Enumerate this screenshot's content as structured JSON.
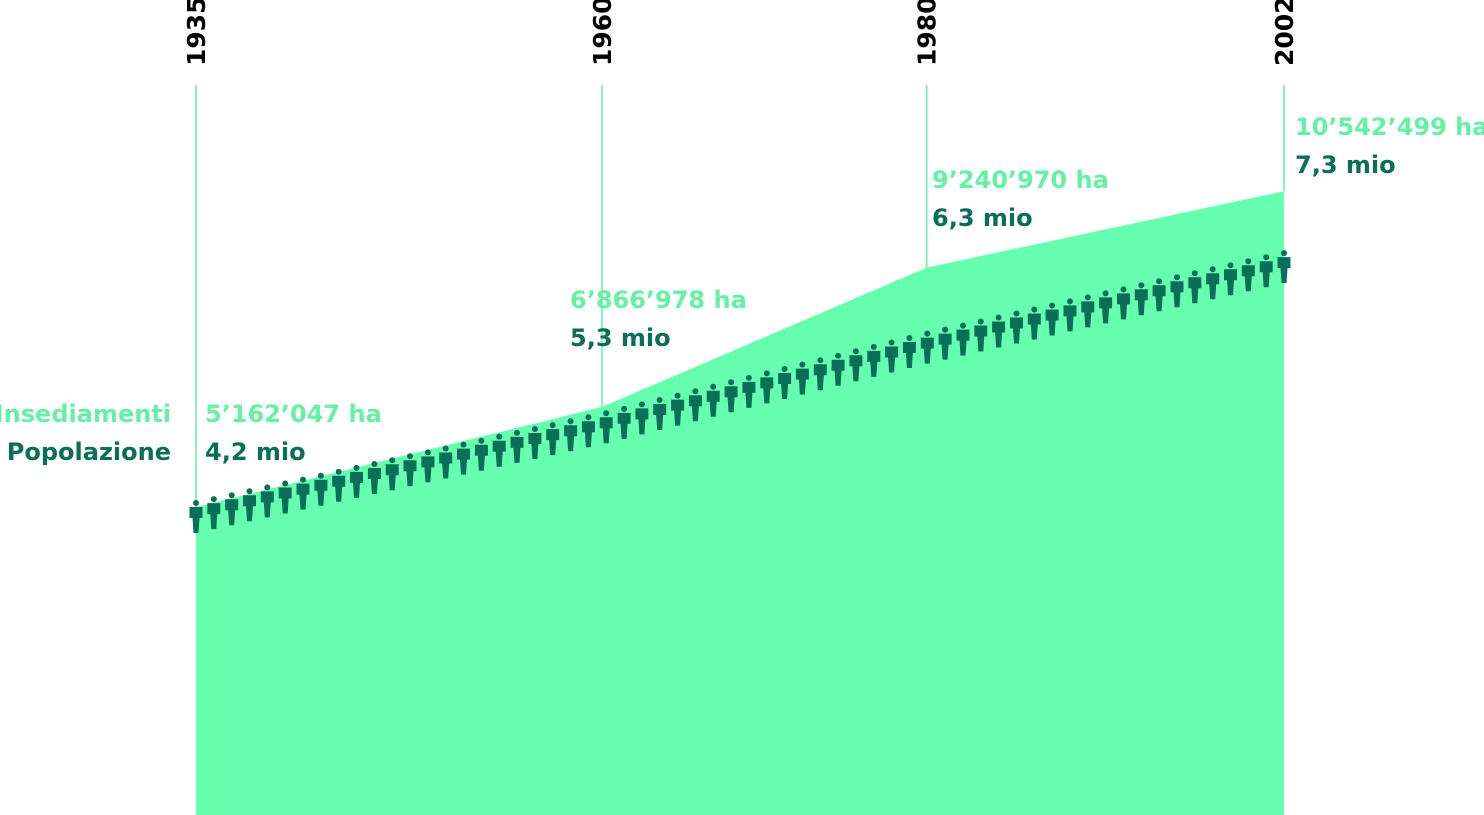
{
  "chart_data": {
    "type": "area",
    "title": "",
    "xlabel": "",
    "ylabel": "",
    "x": [
      1935,
      1960,
      1980,
      2002
    ],
    "x_labels": [
      "1935",
      "1960",
      "1980",
      "2002"
    ],
    "legend_position": "left",
    "grid": false,
    "series": [
      {
        "name": "Insediamenti",
        "values": [
          5162047,
          6866978,
          9240970,
          10542499
        ],
        "labels": [
          "5’162’047 ha",
          "6’866’978 ha",
          "9’240’970 ha",
          "10’542’499 ha"
        ]
      },
      {
        "name": "Popolazione",
        "values": [
          4.2,
          5.3,
          6.3,
          7.3
        ],
        "labels": [
          "4,2 mio",
          "5,3 mio",
          "6,3 mio",
          "7,3 mio"
        ]
      }
    ]
  },
  "colors": {
    "area": "#66ffaf",
    "area_label": "#66f0a6",
    "population": "#0a6e58",
    "guide_line": "#66f0a6",
    "year_text": "#000000"
  },
  "icons": {
    "population_marker": "person-icon"
  }
}
